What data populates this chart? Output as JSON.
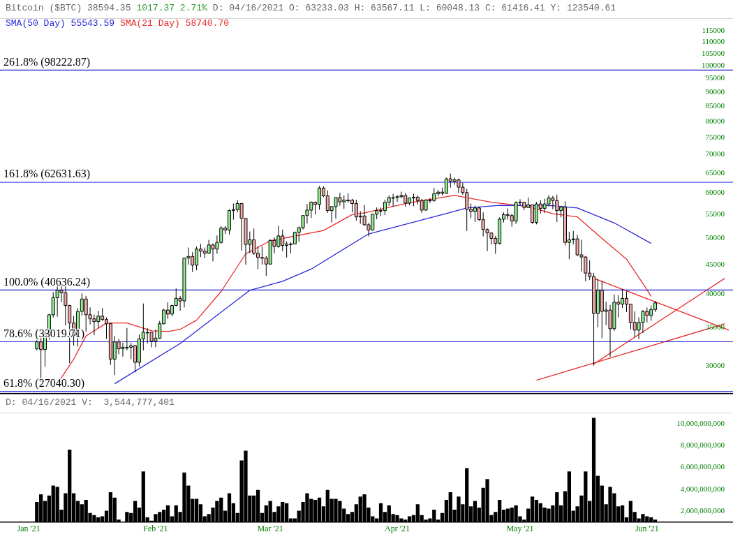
{
  "chart_data": [
    {
      "type": "candlestick",
      "log": true,
      "legend": "top left",
      "tick_labels": "y",
      "annotations": [
        "Bitcoin ($BTC) 38594.35",
        "1017.37 2.71%",
        "D: 04/16/2021 O: 63233.03 H: 63567.11 L: 60048.13 C: 61416.41 Y: 123540.61"
      ],
      "xlim": [
        "2020-12-25",
        "2021-06-22"
      ],
      "ylim": [
        26800,
        121000
      ],
      "yticks": [
        30000,
        35000,
        40000,
        45000,
        50000,
        55000,
        60000,
        65000,
        70000,
        75000,
        80000,
        85000,
        90000,
        95000,
        100000,
        105000,
        110000,
        115000
      ],
      "x": [
        "2021-01-03",
        "2021-01-04",
        "2021-01-05",
        "2021-01-06",
        "2021-01-07",
        "2021-01-08",
        "2021-01-09",
        "2021-01-10",
        "2021-01-11",
        "2021-01-12",
        "2021-01-13",
        "2021-01-14",
        "2021-01-15",
        "2021-01-16",
        "2021-01-17",
        "2021-01-18",
        "2021-01-19",
        "2021-01-20",
        "2021-01-21",
        "2021-01-22",
        "2021-01-23",
        "2021-01-24",
        "2021-01-25",
        "2021-01-26",
        "2021-01-27",
        "2021-01-28",
        "2021-01-29",
        "2021-01-30",
        "2021-01-31",
        "2021-02-01",
        "2021-02-02",
        "2021-02-03",
        "2021-02-04",
        "2021-02-05",
        "2021-02-06",
        "2021-02-07",
        "2021-02-08",
        "2021-02-09",
        "2021-02-10",
        "2021-02-11",
        "2021-02-12",
        "2021-02-13",
        "2021-02-14",
        "2021-02-15",
        "2021-02-16",
        "2021-02-17",
        "2021-02-18",
        "2021-02-19",
        "2021-02-20",
        "2021-02-21",
        "2021-02-22",
        "2021-02-23",
        "2021-02-24",
        "2021-02-25",
        "2021-02-26",
        "2021-02-27",
        "2021-02-28",
        "2021-03-01",
        "2021-03-02",
        "2021-03-03",
        "2021-03-04",
        "2021-03-05",
        "2021-03-06",
        "2021-03-07",
        "2021-03-08",
        "2021-03-09",
        "2021-03-10",
        "2021-03-11",
        "2021-03-12",
        "2021-03-13",
        "2021-03-14",
        "2021-03-15",
        "2021-03-16",
        "2021-03-17",
        "2021-03-18",
        "2021-03-19",
        "2021-03-20",
        "2021-03-21",
        "2021-03-22",
        "2021-03-23",
        "2021-03-24",
        "2021-03-25",
        "2021-03-26",
        "2021-03-27",
        "2021-03-28",
        "2021-03-29",
        "2021-03-30",
        "2021-03-31",
        "2021-04-01",
        "2021-04-02",
        "2021-04-03",
        "2021-04-04",
        "2021-04-05",
        "2021-04-06",
        "2021-04-07",
        "2021-04-08",
        "2021-04-09",
        "2021-04-10",
        "2021-04-11",
        "2021-04-12",
        "2021-04-13",
        "2021-04-14",
        "2021-04-15",
        "2021-04-16",
        "2021-04-17",
        "2021-04-18",
        "2021-04-19",
        "2021-04-20",
        "2021-04-21",
        "2021-04-22",
        "2021-04-23",
        "2021-04-24",
        "2021-04-25",
        "2021-04-26",
        "2021-04-27",
        "2021-04-28",
        "2021-04-29",
        "2021-04-30",
        "2021-05-01",
        "2021-05-02",
        "2021-05-03",
        "2021-05-04",
        "2021-05-05",
        "2021-05-06",
        "2021-05-07",
        "2021-05-08",
        "2021-05-09",
        "2021-05-10",
        "2021-05-11",
        "2021-05-12",
        "2021-05-13",
        "2021-05-14",
        "2021-05-15",
        "2021-05-16",
        "2021-05-17",
        "2021-05-18",
        "2021-05-19",
        "2021-05-20",
        "2021-05-21",
        "2021-05-22",
        "2021-05-23",
        "2021-05-24",
        "2021-05-25",
        "2021-05-26",
        "2021-05-27",
        "2021-05-28",
        "2021-05-29",
        "2021-05-30",
        "2021-05-31",
        "2021-06-01",
        "2021-06-02",
        "2021-06-03"
      ],
      "ohlc": [
        [
          32100,
          34800,
          31900,
          33000
        ],
        [
          33000,
          33600,
          28100,
          32000
        ],
        [
          32000,
          34400,
          29900,
          34000
        ],
        [
          34000,
          36900,
          33300,
          36800
        ],
        [
          36800,
          40300,
          36400,
          39400
        ],
        [
          39400,
          41950,
          36500,
          40600
        ],
        [
          40600,
          41400,
          38700,
          40200
        ],
        [
          40200,
          41300,
          35300,
          38200
        ],
        [
          38200,
          38300,
          30300,
          35600
        ],
        [
          35600,
          36600,
          32500,
          33900
        ],
        [
          33900,
          37800,
          32400,
          37300
        ],
        [
          37300,
          40100,
          36700,
          39200
        ],
        [
          39200,
          39700,
          34400,
          36800
        ],
        [
          36800,
          37900,
          35400,
          36200
        ],
        [
          36200,
          36800,
          33900,
          35800
        ],
        [
          35800,
          37400,
          34900,
          36600
        ],
        [
          36600,
          37800,
          35900,
          36100
        ],
        [
          36100,
          36400,
          33400,
          35500
        ],
        [
          35500,
          35600,
          30100,
          30800
        ],
        [
          30800,
          33800,
          28900,
          33000
        ],
        [
          33000,
          33400,
          31400,
          32100
        ],
        [
          32100,
          32900,
          31100,
          32300
        ],
        [
          32300,
          34900,
          31900,
          32300
        ],
        [
          32300,
          32900,
          30800,
          32500
        ],
        [
          32500,
          32600,
          29200,
          30400
        ],
        [
          30400,
          34000,
          29900,
          33400
        ],
        [
          33400,
          38500,
          31900,
          34300
        ],
        [
          34300,
          34900,
          32800,
          34300
        ],
        [
          34300,
          34300,
          32300,
          33100
        ],
        [
          33100,
          34700,
          32300,
          33500
        ],
        [
          33500,
          35900,
          33400,
          35500
        ],
        [
          35500,
          37700,
          35400,
          37500
        ],
        [
          37500,
          38700,
          36200,
          36900
        ],
        [
          36900,
          38300,
          36600,
          38200
        ],
        [
          38200,
          40900,
          38100,
          39300
        ],
        [
          39300,
          39700,
          37400,
          38900
        ],
        [
          38900,
          46200,
          37900,
          46200
        ],
        [
          46200,
          48200,
          45000,
          46500
        ],
        [
          46500,
          47300,
          43700,
          44900
        ],
        [
          44900,
          48400,
          44000,
          47900
        ],
        [
          47900,
          48900,
          46400,
          47500
        ],
        [
          47500,
          48200,
          46200,
          47100
        ],
        [
          47100,
          49700,
          47000,
          48700
        ],
        [
          48700,
          49000,
          45600,
          47900
        ],
        [
          47900,
          50600,
          47000,
          49200
        ],
        [
          49200,
          52500,
          48900,
          52100
        ],
        [
          52100,
          52500,
          50900,
          51700
        ],
        [
          51700,
          56200,
          50800,
          55900
        ],
        [
          55900,
          57500,
          53900,
          56100
        ],
        [
          56100,
          58300,
          55500,
          57500
        ],
        [
          57500,
          57500,
          47600,
          54200
        ],
        [
          54200,
          54200,
          45000,
          48800
        ],
        [
          48800,
          51400,
          47100,
          49700
        ],
        [
          49700,
          52000,
          46800,
          47100
        ],
        [
          47100,
          48400,
          44200,
          46300
        ],
        [
          46300,
          48400,
          45000,
          46200
        ],
        [
          46200,
          46600,
          43000,
          45100
        ],
        [
          45100,
          49800,
          45000,
          49600
        ],
        [
          49600,
          50200,
          47100,
          48400
        ],
        [
          48400,
          52600,
          48100,
          50500
        ],
        [
          50500,
          51800,
          47500,
          48600
        ],
        [
          48600,
          49400,
          46300,
          48900
        ],
        [
          48900,
          49200,
          47100,
          48900
        ],
        [
          48900,
          51400,
          48900,
          51200
        ],
        [
          51200,
          52400,
          49300,
          52200
        ],
        [
          52200,
          54900,
          51800,
          54800
        ],
        [
          54800,
          57400,
          53100,
          56000
        ],
        [
          56000,
          58000,
          54300,
          57800
        ],
        [
          57800,
          58000,
          55000,
          57300
        ],
        [
          57300,
          61700,
          56100,
          61200
        ],
        [
          61200,
          61600,
          59000,
          59300
        ],
        [
          59300,
          60600,
          55400,
          55900
        ],
        [
          55900,
          56900,
          53300,
          56800
        ],
        [
          56800,
          58900,
          54100,
          58900
        ],
        [
          58900,
          60000,
          57000,
          57900
        ],
        [
          57900,
          59400,
          56300,
          58300
        ],
        [
          58300,
          59900,
          57800,
          58300
        ],
        [
          58300,
          58600,
          55500,
          57500
        ],
        [
          57500,
          58400,
          53700,
          54500
        ],
        [
          54500,
          55800,
          53000,
          54700
        ],
        [
          54700,
          57200,
          52600,
          52800
        ],
        [
          52800,
          53200,
          50400,
          51700
        ],
        [
          51700,
          55100,
          51600,
          55100
        ],
        [
          55100,
          56600,
          54000,
          55900
        ],
        [
          55900,
          56600,
          54700,
          55900
        ],
        [
          55900,
          58400,
          54900,
          57800
        ],
        [
          57800,
          59400,
          57000,
          58900
        ],
        [
          58900,
          59800,
          56800,
          58900
        ],
        [
          58900,
          59500,
          57900,
          59100
        ],
        [
          59100,
          60300,
          58800,
          59400
        ],
        [
          59400,
          60000,
          56800,
          57600
        ],
        [
          57600,
          58900,
          57100,
          58800
        ],
        [
          58800,
          59800,
          56900,
          59000
        ],
        [
          59000,
          59400,
          57300,
          58200
        ],
        [
          58200,
          58600,
          55400,
          56000
        ],
        [
          56000,
          58500,
          55900,
          58300
        ],
        [
          58300,
          58800,
          57600,
          58200
        ],
        [
          58200,
          61200,
          57900,
          59800
        ],
        [
          59800,
          60700,
          59200,
          60200
        ],
        [
          60200,
          61300,
          59400,
          59900
        ],
        [
          59900,
          63800,
          59800,
          63500
        ],
        [
          63500,
          64850,
          61300,
          62900
        ],
        [
          62900,
          63800,
          62000,
          63233.03
        ],
        [
          63233.03,
          63567.11,
          60048.13,
          61416.41
        ],
        [
          61400,
          62500,
          59600,
          60100
        ],
        [
          60100,
          61000,
          51500,
          56200
        ],
        [
          56200,
          57500,
          54200,
          55700
        ],
        [
          55700,
          57000,
          53400,
          56500
        ],
        [
          56500,
          56800,
          53600,
          53900
        ],
        [
          53900,
          55500,
          50400,
          51800
        ],
        [
          51800,
          52100,
          47500,
          51100
        ],
        [
          51100,
          51200,
          48800,
          50000
        ],
        [
          50000,
          50500,
          47000,
          49000
        ],
        [
          49000,
          54400,
          48800,
          54000
        ],
        [
          54000,
          55500,
          53300,
          55000
        ],
        [
          55000,
          56400,
          53900,
          54800
        ],
        [
          54800,
          55200,
          52400,
          53600
        ],
        [
          53600,
          58000,
          53000,
          57700
        ],
        [
          57700,
          58500,
          57100,
          57800
        ],
        [
          57800,
          57900,
          56000,
          56600
        ],
        [
          56600,
          58900,
          56500,
          57200
        ],
        [
          57200,
          57200,
          53000,
          53300
        ],
        [
          53300,
          57900,
          52900,
          57400
        ],
        [
          57400,
          58300,
          55200,
          56400
        ],
        [
          56400,
          58600,
          55400,
          57400
        ],
        [
          57400,
          59500,
          56900,
          58800
        ],
        [
          58800,
          59300,
          56200,
          58200
        ],
        [
          58200,
          59600,
          53400,
          55900
        ],
        [
          55900,
          56900,
          54400,
          56700
        ],
        [
          56700,
          58000,
          48600,
          49200
        ],
        [
          49200,
          51300,
          46000,
          49700
        ],
        [
          49700,
          51500,
          48800,
          49900
        ],
        [
          49900,
          50700,
          46600,
          46800
        ],
        [
          46800,
          49700,
          43800,
          46400
        ],
        [
          46400,
          46600,
          42100,
          43500
        ],
        [
          43500,
          45800,
          42300,
          42900
        ],
        [
          42900,
          43500,
          30000,
          37000
        ],
        [
          37000,
          42500,
          35000,
          40600
        ],
        [
          40600,
          42200,
          33500,
          37300
        ],
        [
          37300,
          38800,
          35300,
          37500
        ],
        [
          37500,
          38300,
          31100,
          34800
        ],
        [
          34800,
          39900,
          34500,
          38700
        ],
        [
          38700,
          39800,
          36400,
          38400
        ],
        [
          38400,
          40800,
          37800,
          39300
        ],
        [
          39300,
          40400,
          37200,
          38400
        ],
        [
          38400,
          38400,
          34700,
          35700
        ],
        [
          35700,
          37300,
          33600,
          34600
        ],
        [
          34600,
          36400,
          33400,
          35700
        ],
        [
          35700,
          37500,
          34200,
          37300
        ],
        [
          37300,
          37900,
          35700,
          36700
        ],
        [
          36700,
          38200,
          35900,
          37577
        ],
        [
          37577,
          38900,
          37200,
          38594.35
        ]
      ],
      "series": [
        {
          "type": "line",
          "name": "SMA(50 Day) 55543.59",
          "color": "#2828d8",
          "x": [
            "2021-01-22",
            "2021-02-07",
            "2021-02-24",
            "2021-03-04",
            "2021-03-11",
            "2021-03-25",
            "2021-04-12",
            "2021-04-18",
            "2021-04-26",
            "2021-05-09",
            "2021-05-15",
            "2021-05-24",
            "2021-06-02"
          ],
          "values": [
            27900,
            32800,
            40600,
            42100,
            44200,
            50900,
            55000,
            56500,
            57100,
            57000,
            56500,
            53200,
            49000
          ]
        },
        {
          "type": "line",
          "name": "SMA(21 Day) 58740.70",
          "color": "#e82a2a",
          "x": [
            "2021-01-08",
            "2021-01-12",
            "2021-01-15",
            "2021-01-20",
            "2021-01-25",
            "2021-01-31",
            "2021-02-04",
            "2021-02-07",
            "2021-02-11",
            "2021-02-17",
            "2021-02-23",
            "2021-03-01",
            "2021-03-14",
            "2021-03-21",
            "2021-03-24",
            "2021-04-04",
            "2021-04-15",
            "2021-04-24",
            "2021-05-03",
            "2021-05-09",
            "2021-05-15",
            "2021-05-21",
            "2021-05-27",
            "2021-06-01",
            "2021-06-02"
          ],
          "values": [
            27900,
            30800,
            33800,
            35600,
            35600,
            34500,
            34400,
            34700,
            36000,
            40400,
            47000,
            49500,
            51600,
            55000,
            55400,
            57700,
            59400,
            57800,
            56800,
            55200,
            54500,
            50000,
            46000,
            40700,
            39600
          ]
        },
        {
          "type": "line",
          "color": "#e82a2a",
          "x": [
            "2021-05-19",
            "2021-06-21"
          ],
          "values": [
            42600,
            34600
          ]
        },
        {
          "type": "line",
          "color": "#e82a2a",
          "x": [
            "2021-05-19",
            "2021-06-20"
          ],
          "values": [
            30200,
            42600
          ]
        },
        {
          "type": "line",
          "color": "#e82a2a",
          "x": [
            "2021-05-05",
            "2021-06-20"
          ],
          "values": [
            28300,
            35500
          ]
        }
      ],
      "ref_lines": [
        {
          "axis": "y",
          "value": 98222.87,
          "label": "261.8% (98222.87)",
          "color": "#1c1cc8"
        },
        {
          "axis": "y",
          "value": 62631.63,
          "label": "161.8% (62631.63)",
          "color": "#5555ee"
        },
        {
          "axis": "y",
          "value": 40636.24,
          "label": "100.0% (40636.24)",
          "color": "#2020cc"
        },
        {
          "axis": "y",
          "value": 33019.71,
          "label": "78.6% (33019.71)",
          "color": "#2020cc"
        },
        {
          "axis": "y",
          "value": 27040.3,
          "label": "61.8% (27040.30)",
          "color": "#2020cc"
        }
      ]
    },
    {
      "type": "bar",
      "color": "#000000",
      "annotations": [
        "D: 04/16/2021 V:  3,544,777,401"
      ],
      "xlim": [
        "2020-12-25",
        "2021-06-22"
      ],
      "xticks": [
        {
          "value": "2021-01-01",
          "label": "Jan '21"
        },
        {
          "value": "2021-02-01",
          "label": "Feb '21"
        },
        {
          "value": "2021-03-01",
          "label": "Mar '21"
        },
        {
          "value": "2021-04-01",
          "label": "Apr '21"
        },
        {
          "value": "2021-05-01",
          "label": "May '21"
        },
        {
          "value": "2021-06-01",
          "label": "Jun '21"
        }
      ],
      "ylim": [
        1000000000.0,
        11000000000.0
      ],
      "yticks": [
        {
          "value": 2000000000.0,
          "label": "2,000,000,000"
        },
        {
          "value": 4000000000.0,
          "label": "4,000,000,000"
        },
        {
          "value": 6000000000.0,
          "label": "6,000,000,000"
        },
        {
          "value": 8000000000.0,
          "label": "8,000,000,000"
        },
        {
          "value": 10000000000.0,
          "label": "10,000,000,000"
        }
      ],
      "x": [
        "2021-01-03",
        "2021-01-04",
        "2021-01-05",
        "2021-01-06",
        "2021-01-07",
        "2021-01-08",
        "2021-01-09",
        "2021-01-10",
        "2021-01-11",
        "2021-01-12",
        "2021-01-13",
        "2021-01-14",
        "2021-01-15",
        "2021-01-16",
        "2021-01-17",
        "2021-01-18",
        "2021-01-19",
        "2021-01-20",
        "2021-01-21",
        "2021-01-22",
        "2021-01-23",
        "2021-01-24",
        "2021-01-25",
        "2021-01-26",
        "2021-01-27",
        "2021-01-28",
        "2021-01-29",
        "2021-01-30",
        "2021-01-31",
        "2021-02-01",
        "2021-02-02",
        "2021-02-03",
        "2021-02-04",
        "2021-02-05",
        "2021-02-06",
        "2021-02-07",
        "2021-02-08",
        "2021-02-09",
        "2021-02-10",
        "2021-02-11",
        "2021-02-12",
        "2021-02-13",
        "2021-02-14",
        "2021-02-15",
        "2021-02-16",
        "2021-02-17",
        "2021-02-18",
        "2021-02-19",
        "2021-02-20",
        "2021-02-21",
        "2021-02-22",
        "2021-02-23",
        "2021-02-24",
        "2021-02-25",
        "2021-02-26",
        "2021-02-27",
        "2021-02-28",
        "2021-03-01",
        "2021-03-02",
        "2021-03-03",
        "2021-03-04",
        "2021-03-05",
        "2021-03-06",
        "2021-03-07",
        "2021-03-08",
        "2021-03-09",
        "2021-03-10",
        "2021-03-11",
        "2021-03-12",
        "2021-03-13",
        "2021-03-14",
        "2021-03-15",
        "2021-03-16",
        "2021-03-17",
        "2021-03-18",
        "2021-03-19",
        "2021-03-20",
        "2021-03-21",
        "2021-03-22",
        "2021-03-23",
        "2021-03-24",
        "2021-03-25",
        "2021-03-26",
        "2021-03-27",
        "2021-03-28",
        "2021-03-29",
        "2021-03-30",
        "2021-03-31",
        "2021-04-01",
        "2021-04-02",
        "2021-04-03",
        "2021-04-04",
        "2021-04-05",
        "2021-04-06",
        "2021-04-07",
        "2021-04-08",
        "2021-04-09",
        "2021-04-10",
        "2021-04-11",
        "2021-04-12",
        "2021-04-13",
        "2021-04-14",
        "2021-04-15",
        "2021-04-16",
        "2021-04-17",
        "2021-04-18",
        "2021-04-19",
        "2021-04-20",
        "2021-04-21",
        "2021-04-22",
        "2021-04-23",
        "2021-04-24",
        "2021-04-25",
        "2021-04-26",
        "2021-04-27",
        "2021-04-28",
        "2021-04-29",
        "2021-04-30",
        "2021-05-01",
        "2021-05-02",
        "2021-05-03",
        "2021-05-04",
        "2021-05-05",
        "2021-05-06",
        "2021-05-07",
        "2021-05-08",
        "2021-05-09",
        "2021-05-10",
        "2021-05-11",
        "2021-05-12",
        "2021-05-13",
        "2021-05-14",
        "2021-05-15",
        "2021-05-16",
        "2021-05-17",
        "2021-05-18",
        "2021-05-19",
        "2021-05-20",
        "2021-05-21",
        "2021-05-22",
        "2021-05-23",
        "2021-05-24",
        "2021-05-25",
        "2021-05-26",
        "2021-05-27",
        "2021-05-28",
        "2021-05-29",
        "2021-05-30",
        "2021-05-31",
        "2021-06-01",
        "2021-06-02",
        "2021-06-03"
      ],
      "values": [
        2800000000.0,
        3500000000.0,
        2900000000.0,
        3400000000.0,
        4300000000.0,
        4200000000.0,
        2100000000.0,
        3600000000.0,
        7600000000.0,
        3600000000.0,
        2900000000.0,
        2600000000.0,
        3000000000.0,
        1800000000.0,
        1600000000.0,
        1400000000.0,
        1500000000.0,
        2000000000.0,
        3700000000.0,
        3200000000.0,
        1200000000.0,
        1000000000.0,
        1900000000.0,
        1800000000.0,
        2900000000.0,
        2300000000.0,
        5600000000.0,
        1400000000.0,
        1100000000.0,
        1700000000.0,
        1900000000.0,
        2100000000.0,
        2500000000.0,
        1500000000.0,
        2500000000.0,
        1900000000.0,
        5500000000.0,
        4300000000.0,
        3100000000.0,
        3100000000.0,
        2600000000.0,
        1500000000.0,
        1700000000.0,
        2300000000.0,
        2900000000.0,
        3200000000.0,
        2000000000.0,
        3600000000.0,
        2700000000.0,
        1800000000.0,
        6600000000.0,
        7500000000.0,
        3400000000.0,
        3400000000.0,
        3900000000.0,
        1800000000.0,
        2500000000.0,
        2900000000.0,
        1900000000.0,
        2400000000.0,
        2800000000.0,
        2700000000.0,
        1300000000.0,
        1300000000.0,
        2000000000.0,
        2800000000.0,
        3600000000.0,
        3100000000.0,
        3000000000.0,
        3200000000.0,
        2400000000.0,
        3900000000.0,
        3100000000.0,
        3100000000.0,
        2900000000.0,
        2200000000.0,
        1700000000.0,
        1900000000.0,
        2600000000.0,
        3300000000.0,
        3500000000.0,
        2300000000.0,
        1500000000.0,
        1300000000.0,
        2700000000.0,
        1900000000.0,
        2500000000.0,
        1700000000.0,
        1600000000.0,
        1300000000.0,
        1200000000.0,
        1500000000.0,
        1600000000.0,
        2600000000.0,
        1600000000.0,
        1200000000.0,
        1300000000.0,
        2100000000.0,
        1200000000.0,
        1800000000.0,
        3000000000.0,
        3700000000.0,
        2100000000.0,
        3300000000.0,
        2600000000.0,
        5900000000.0,
        2400000000.0,
        2900000000.0,
        2300000000.0,
        4100000000.0,
        4900000000.0,
        1600000000.0,
        1900000000.0,
        3000000000.0,
        2100000000.0,
        2200000000.0,
        2300000000.0,
        2500000000.0,
        1500000000.0,
        1200000000.0,
        2200000000.0,
        3300000000.0,
        3000000000.0,
        2700000000.0,
        2300000000.0,
        2200000000.0,
        2500000000.0,
        3700000000.0,
        2500000000.0,
        3800000000.0,
        5600000000.0,
        2000000000.0,
        2400000000.0,
        3400000000.0,
        5600000000.0,
        2900000000.0,
        10500000000.0,
        5200000000.0,
        4300000000.0,
        2600000000.0,
        4200000000.0,
        3600000000.0,
        2400000000.0,
        2500000000.0,
        1400000000.0,
        2900000000.0,
        1900000000.0,
        1300000000.0,
        1700000000.0,
        1500000000.0,
        1400000000.0,
        1200000000.0
      ]
    }
  ]
}
